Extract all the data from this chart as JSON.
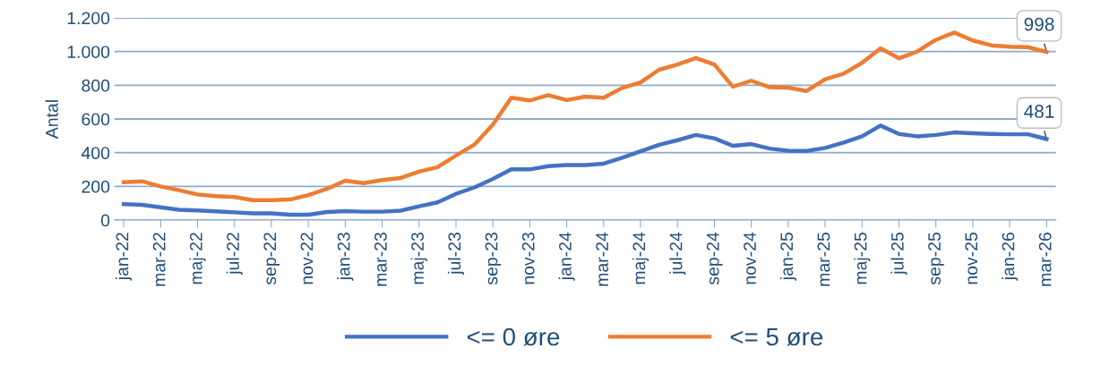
{
  "chart_data": {
    "type": "line",
    "ylabel": "Antal",
    "categories": [
      "jan-22",
      null,
      "mar-22",
      null,
      "maj-22",
      null,
      "jul-22",
      null,
      "sep-22",
      null,
      "nov-22",
      null,
      "jan-23",
      null,
      "mar-23",
      null,
      "maj-23",
      null,
      "jul-23",
      null,
      "sep-23",
      null,
      "nov-23",
      null,
      "jan-24",
      null,
      "mar-24",
      null,
      "maj-24",
      null,
      "jul-24",
      null,
      "sep-24",
      null,
      "nov-24",
      null,
      "jan-25",
      null,
      "mar-25",
      null,
      "maj-25",
      null,
      "jul-25",
      null,
      "sep-25",
      null,
      "nov-25",
      null,
      "jan-26",
      null,
      "mar-26"
    ],
    "series": [
      {
        "name": "<= 0 øre",
        "color": "#4472c4",
        "values": [
          95,
          90,
          76,
          61,
          57,
          52,
          46,
          40,
          40,
          32,
          32,
          48,
          53,
          50,
          50,
          56,
          82,
          105,
          156,
          194,
          244,
          301,
          301,
          320,
          327,
          327,
          335,
          370,
          408,
          447,
          474,
          505,
          485,
          441,
          451,
          424,
          412,
          410,
          428,
          460,
          497,
          561,
          511,
          497,
          505,
          520,
          515,
          511,
          509,
          509,
          481
        ]
      },
      {
        "name": "<= 5 øre",
        "color": "#ed7d31",
        "values": [
          225,
          230,
          200,
          177,
          152,
          142,
          137,
          118,
          118,
          122,
          148,
          185,
          234,
          219,
          238,
          250,
          287,
          314,
          383,
          448,
          567,
          726,
          710,
          741,
          712,
          733,
          726,
          784,
          817,
          892,
          923,
          962,
          923,
          792,
          827,
          788,
          786,
          766,
          836,
          869,
          933,
          1020,
          960,
          1001,
          1070,
          1113,
          1066,
          1037,
          1029,
          1026,
          998
        ]
      }
    ],
    "annotations": [
      {
        "text": "998",
        "x": "mar-26",
        "y": 998
      },
      {
        "text": "481",
        "x": "mar-26",
        "y": 481
      }
    ],
    "ylim": [
      0,
      1200
    ],
    "yticks": [
      0,
      200,
      400,
      600,
      800,
      {
        "value": 1000,
        "label": "1.000"
      },
      {
        "value": 1200,
        "label": "1.200"
      }
    ],
    "grid": "y",
    "legend": "bottom",
    "marker": "none",
    "line_style": "solid"
  }
}
